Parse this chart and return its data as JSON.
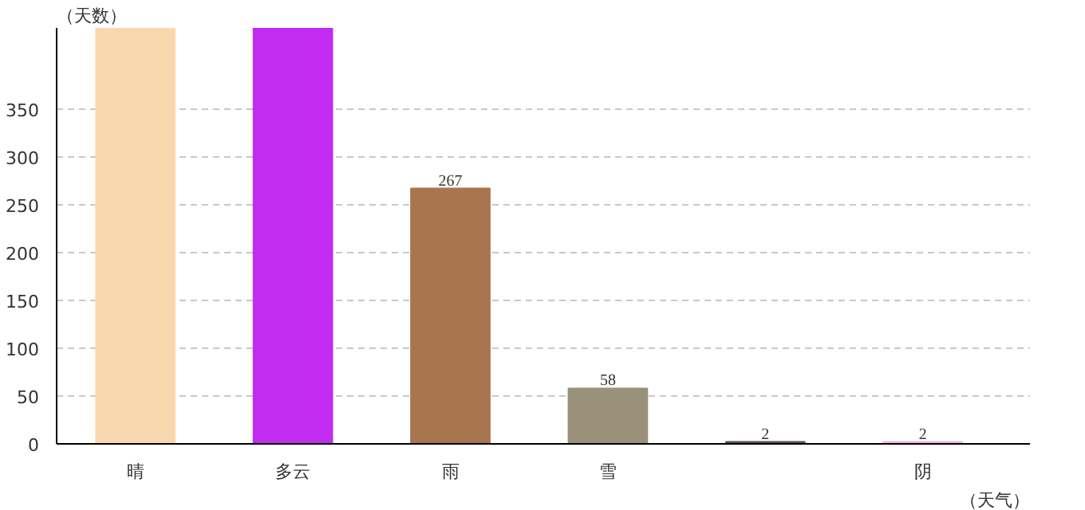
{
  "chart_data": {
    "type": "bar",
    "xlabel": "（天气）",
    "ylabel": "（天数）",
    "categories": [
      "晴",
      "多云",
      "雨",
      "雪",
      null,
      "阴"
    ],
    "values": [
      435,
      435,
      267,
      58,
      2,
      2
    ],
    "value_labels": [
      null,
      null,
      "267",
      "58",
      "2",
      "2"
    ],
    "colors": [
      "#f9d8b0",
      "#c12cf0",
      "#a8754f",
      "#9a917a",
      "#5e4e4e",
      "#f0b8e8"
    ],
    "ylim": [
      0,
      435
    ],
    "yticks": [
      0,
      50,
      100,
      150,
      200,
      250,
      300,
      350
    ],
    "grid": "y"
  }
}
